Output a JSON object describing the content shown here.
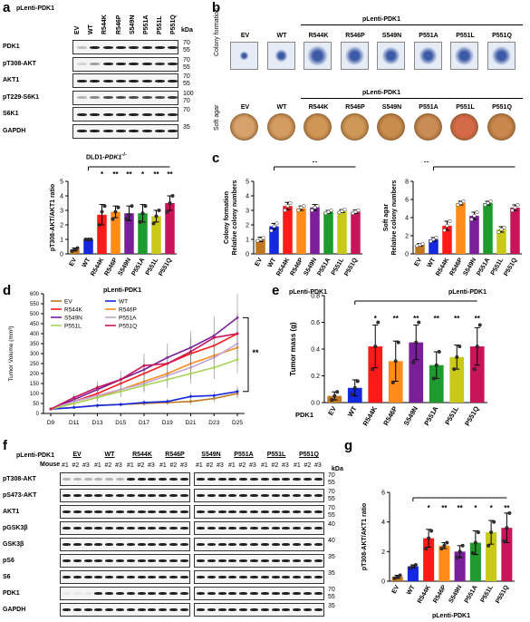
{
  "panel_a": {
    "letter": "a",
    "construct": "pLenti-PDK1",
    "lanes": [
      "EV",
      "WT",
      "R544K",
      "R546P",
      "S549N",
      "P551A",
      "P551L",
      "P551Q"
    ],
    "kda_label": "kDa",
    "blots": [
      {
        "name": "PDK1",
        "kda": [
          "70",
          "55"
        ]
      },
      {
        "name": "pT308-AKT",
        "kda": [
          "70",
          "55"
        ]
      },
      {
        "name": "AKT1",
        "kda": [
          "70",
          "55"
        ]
      },
      {
        "name": "pT229-S6K1",
        "kda": [
          "100",
          "70"
        ]
      },
      {
        "name": "S6K1",
        "kda": [
          "70"
        ]
      },
      {
        "name": "GAPDH",
        "kda": [
          "35"
        ]
      }
    ],
    "cell_line_prefix": "DLD1-",
    "cell_line_italic": "PDK1",
    "cell_line_sup": "-/-"
  },
  "panel_b": {
    "letter": "b",
    "construct": "pLenti-PDK1",
    "wells": [
      "EV",
      "WT",
      "R544K",
      "R546P",
      "S549N",
      "P551A",
      "P551L",
      "P551Q"
    ],
    "row1_label": "Colony formation",
    "row2_label": "Soft agar"
  },
  "panel_g": {
    "letter": "g"
  },
  "panel_f": {
    "letter": "f",
    "construct": "pLenti-PDK1",
    "groups_left": [
      "EV",
      "WT",
      "R544K",
      "R546P"
    ],
    "groups_right": [
      "S549N",
      "P551A",
      "P551L",
      "P551Q"
    ],
    "mouse_label": "Mouse",
    "replicates": [
      "#1",
      "#2",
      "#3"
    ],
    "kda_label": "kDa",
    "blots": [
      {
        "name": "pT308-AKT",
        "kda": [
          "70",
          "55"
        ]
      },
      {
        "name": "pS473-AKT",
        "kda": [
          "70",
          "55"
        ]
      },
      {
        "name": "AKT1",
        "kda": [
          "70",
          "55"
        ]
      },
      {
        "name": "pGSK3β",
        "kda": [
          "40"
        ]
      },
      {
        "name": "GSK3β",
        "kda": [
          "40"
        ]
      },
      {
        "name": "pS6",
        "kda": [
          "35"
        ]
      },
      {
        "name": "S6",
        "kda": [
          "35"
        ]
      },
      {
        "name": "PDK1",
        "kda": [
          "70",
          "55"
        ]
      },
      {
        "name": "GAPDH",
        "kda": [
          "35"
        ]
      }
    ]
  },
  "chart_data": [
    {
      "id": "a-bar",
      "type": "bar",
      "categories": [
        "EV",
        "WT",
        "R544K",
        "R546P",
        "S549N",
        "P551A",
        "P551L",
        "P551Q"
      ],
      "values": [
        0.3,
        1.0,
        2.7,
        2.9,
        2.8,
        2.8,
        2.6,
        3.5
      ],
      "points": [
        [
          0.2,
          0.3,
          0.4
        ],
        [
          1.0,
          1.0,
          1.0
        ],
        [
          2.0,
          2.9,
          3.3
        ],
        [
          2.4,
          2.9,
          3.2
        ],
        [
          2.4,
          2.7,
          3.3
        ],
        [
          2.2,
          2.8,
          3.3
        ],
        [
          2.1,
          2.6,
          3.0
        ],
        [
          2.9,
          3.5,
          4.0
        ]
      ],
      "errors": [
        0.1,
        0.0,
        0.7,
        0.4,
        0.5,
        0.6,
        0.4,
        0.5
      ],
      "significance": [
        "",
        "",
        "*",
        "**",
        "**",
        "*",
        "**",
        "**"
      ],
      "colors": [
        "#c0771f",
        "#1428e0",
        "#ff1a1a",
        "#ff8c1a",
        "#7a1f9a",
        "#1f9a2f",
        "#c9c91a",
        "#c8155a"
      ],
      "ylabel": "pT308-AKT/AKT1 ratio",
      "xlabel": "pLenti-PDK1",
      "ylim": [
        0,
        5
      ],
      "yticks": [
        0,
        1,
        2,
        3,
        4,
        5
      ]
    },
    {
      "id": "c-colony",
      "type": "bar",
      "categories": [
        "EV",
        "WT",
        "R544K",
        "R546P",
        "S549N",
        "P551A",
        "P551L",
        "P551Q"
      ],
      "values": [
        1.0,
        1.9,
        3.3,
        3.15,
        3.2,
        2.9,
        2.95,
        2.9
      ],
      "points": [
        [
          0.9,
          1.0,
          1.1
        ],
        [
          1.6,
          1.9,
          2.1
        ],
        [
          3.0,
          3.3,
          3.5
        ],
        [
          3.0,
          3.2,
          3.3
        ],
        [
          3.0,
          3.2,
          3.3
        ],
        [
          2.8,
          2.9,
          3.0
        ],
        [
          2.85,
          2.95,
          3.05
        ],
        [
          2.8,
          2.9,
          3.0
        ]
      ],
      "errors": [
        0.15,
        0.2,
        0.25,
        0.15,
        0.2,
        0.1,
        0.1,
        0.12
      ],
      "significance": "**",
      "colors": [
        "#c0771f",
        "#1428e0",
        "#ff1a1a",
        "#ff8c1a",
        "#7a1f9a",
        "#1f9a2f",
        "#c9c91a",
        "#c8155a"
      ],
      "ylabel_line1": "Colony formation",
      "ylabel_line2": "Relative colony numbers",
      "xlabel": "pLenti-PDK1",
      "ylim": [
        0,
        5
      ],
      "yticks": [
        0,
        1,
        2,
        3,
        4,
        5
      ]
    },
    {
      "id": "c-softagar",
      "type": "bar",
      "categories": [
        "EV",
        "WT",
        "R544K",
        "R546P",
        "S549N",
        "P551A",
        "P551L",
        "P551Q"
      ],
      "values": [
        1.0,
        1.6,
        3.1,
        5.6,
        4.2,
        5.6,
        2.7,
        5.1
      ],
      "points": [
        [
          0.9,
          1.0,
          1.1
        ],
        [
          1.4,
          1.6,
          1.8
        ],
        [
          2.6,
          3.1,
          3.6
        ],
        [
          5.4,
          5.6,
          5.8
        ],
        [
          3.8,
          4.2,
          4.6
        ],
        [
          5.4,
          5.6,
          5.8
        ],
        [
          2.4,
          2.7,
          2.9
        ],
        [
          4.8,
          5.1,
          5.4
        ]
      ],
      "errors": [
        0.15,
        0.2,
        0.5,
        0.2,
        0.4,
        0.2,
        0.3,
        0.3
      ],
      "significance": "**",
      "colors": [
        "#c0771f",
        "#1428e0",
        "#ff1a1a",
        "#ff8c1a",
        "#7a1f9a",
        "#1f9a2f",
        "#c9c91a",
        "#c8155a"
      ],
      "ylabel_line1": "Soft agar",
      "ylabel_line2": "Relative colony numbers",
      "xlabel": "pLenti-PDK1",
      "ylim": [
        0,
        8
      ],
      "yticks": [
        0,
        2,
        4,
        6,
        8
      ]
    },
    {
      "id": "d-growth",
      "type": "line",
      "x": [
        "D9",
        "D11",
        "D13",
        "D15",
        "D17",
        "D19",
        "D21",
        "D23",
        "D25"
      ],
      "series": [
        {
          "name": "EV",
          "color": "#c0771f",
          "values": [
            22,
            30,
            40,
            45,
            50,
            55,
            60,
            75,
            100
          ]
        },
        {
          "name": "WT",
          "color": "#1428e0",
          "values": [
            22,
            30,
            40,
            45,
            55,
            60,
            85,
            90,
            110
          ]
        },
        {
          "name": "R544K",
          "color": "#ff1a1a",
          "values": [
            22,
            60,
            100,
            150,
            200,
            250,
            300,
            340,
            400
          ]
        },
        {
          "name": "R546P",
          "color": "#ff8c1a",
          "values": [
            22,
            50,
            80,
            120,
            160,
            200,
            250,
            290,
            330
          ]
        },
        {
          "name": "S549N",
          "color": "#7a1f9a",
          "values": [
            22,
            70,
            120,
            170,
            220,
            280,
            330,
            390,
            480
          ]
        },
        {
          "name": "P551A",
          "color": "#c2a5d6",
          "values": [
            22,
            60,
            90,
            120,
            150,
            190,
            230,
            280,
            350
          ]
        },
        {
          "name": "P551L",
          "color": "#a8d35a",
          "values": [
            22,
            50,
            80,
            110,
            140,
            170,
            200,
            230,
            270
          ]
        },
        {
          "name": "P551Q",
          "color": "#c8155a",
          "values": [
            22,
            80,
            130,
            170,
            240,
            250,
            310,
            380,
            400
          ]
        }
      ],
      "ylabel": "Tumor Volume (mm³)",
      "ylim": [
        0,
        600
      ],
      "yticks": [
        0,
        50,
        100,
        150,
        200,
        250,
        300,
        350,
        400,
        450,
        500,
        550,
        600
      ],
      "significance": "**",
      "legend": "top-left"
    },
    {
      "id": "e-mass",
      "type": "bar",
      "categories": [
        "EV",
        "WT",
        "R544K",
        "R546P",
        "S549N",
        "P551A",
        "P551L",
        "P551Q"
      ],
      "values": [
        0.05,
        0.11,
        0.42,
        0.31,
        0.45,
        0.28,
        0.34,
        0.42
      ],
      "points": [
        [
          0.02,
          0.05,
          0.08
        ],
        [
          0.06,
          0.11,
          0.16
        ],
        [
          0.25,
          0.42,
          0.6
        ],
        [
          0.15,
          0.31,
          0.45
        ],
        [
          0.3,
          0.45,
          0.6
        ],
        [
          0.18,
          0.28,
          0.38
        ],
        [
          0.25,
          0.34,
          0.42
        ],
        [
          0.25,
          0.42,
          0.58
        ]
      ],
      "errors": [
        0.03,
        0.06,
        0.16,
        0.15,
        0.13,
        0.1,
        0.09,
        0.14
      ],
      "significance": [
        "",
        "",
        "*",
        "**",
        "**",
        "**",
        "**",
        "**"
      ],
      "colors": [
        "#c0771f",
        "#1428e0",
        "#ff1a1a",
        "#ff8c1a",
        "#7a1f9a",
        "#1f9a2f",
        "#c9c91a",
        "#c8155a"
      ],
      "ylabel": "Tumor mass (g)",
      "xlabel_prefix": "PDK1",
      "ylim": [
        0,
        0.8
      ],
      "yticks": [
        "0.0",
        "0.2",
        "0.4",
        "0.6",
        "0.8"
      ]
    },
    {
      "id": "g-bar",
      "type": "bar",
      "categories": [
        "EV",
        "WT",
        "R544K",
        "R546P",
        "S549N",
        "P551A",
        "P551L",
        "P551Q"
      ],
      "values": [
        0.3,
        1.0,
        2.9,
        2.4,
        2.0,
        2.6,
        3.3,
        3.6
      ],
      "points": [
        [
          0.2,
          0.3,
          0.4
        ],
        [
          0.9,
          1.0,
          1.1
        ],
        [
          2.2,
          2.9,
          3.4
        ],
        [
          2.2,
          2.4,
          2.6
        ],
        [
          1.6,
          2.0,
          2.4
        ],
        [
          1.9,
          2.6,
          3.3
        ],
        [
          2.4,
          3.3,
          4.0
        ],
        [
          2.7,
          3.6,
          4.6
        ]
      ],
      "errors": [
        0.1,
        0.1,
        0.6,
        0.2,
        0.4,
        0.8,
        0.8,
        1.0
      ],
      "significance": [
        "",
        "",
        "*",
        "**",
        "**",
        "*",
        "*",
        "**"
      ],
      "colors": [
        "#c0771f",
        "#1428e0",
        "#ff1a1a",
        "#ff8c1a",
        "#7a1f9a",
        "#1f9a2f",
        "#c9c91a",
        "#c8155a"
      ],
      "ylabel": "pT308-AKT/AKT1 ratio",
      "xlabel": "pLenti-PDK1",
      "ylim": [
        0,
        6
      ],
      "yticks": [
        0,
        2,
        4,
        6
      ]
    }
  ]
}
